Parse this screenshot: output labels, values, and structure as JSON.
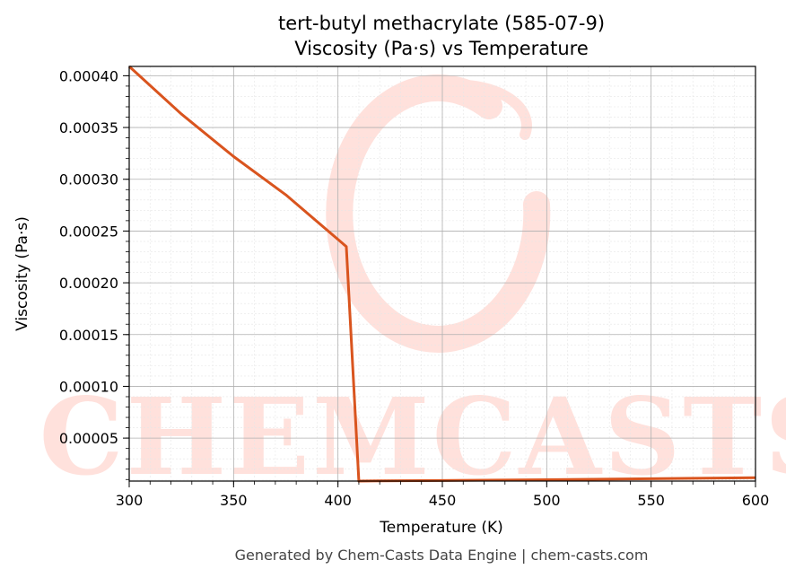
{
  "chart_data": {
    "type": "line",
    "title": "tert-butyl methacrylate (585-07-9)",
    "subtitle": "Viscosity (Pa·s) vs Temperature",
    "xlabel": "Temperature (K)",
    "ylabel": "Viscosity (Pa·s)",
    "xlim": [
      300,
      600
    ],
    "ylim": [
      8.5e-06,
      0.000409
    ],
    "x_ticks": [
      300,
      350,
      400,
      450,
      500,
      550,
      600
    ],
    "x_tick_labels": [
      "300",
      "350",
      "400",
      "450",
      "500",
      "550",
      "600"
    ],
    "y_ticks": [
      5e-05,
      0.0001,
      0.00015,
      0.0002,
      0.00025,
      0.0003,
      0.00035,
      0.0004
    ],
    "y_tick_labels": [
      "0.00005",
      "0.00010",
      "0.00015",
      "0.00020",
      "0.00025",
      "0.00030",
      "0.00035",
      "0.00040"
    ],
    "grid": true,
    "series": [
      {
        "color": "#d9541e",
        "x": [
          300,
          325,
          350,
          375,
          404,
          410,
          420,
          450,
          500,
          550,
          600
        ],
        "y": [
          0.000409,
          0.000363,
          0.000322,
          0.000285,
          0.000235,
          8.5e-06,
          8.7e-06,
          9e-06,
          9.8e-06,
          1.08e-05,
          1.18e-05
        ]
      }
    ]
  },
  "footer": "Generated by Chem-Casts Data Engine | chem-casts.com",
  "watermark": {
    "text": "CHEMCASTS",
    "color": "#ffe1dc"
  }
}
